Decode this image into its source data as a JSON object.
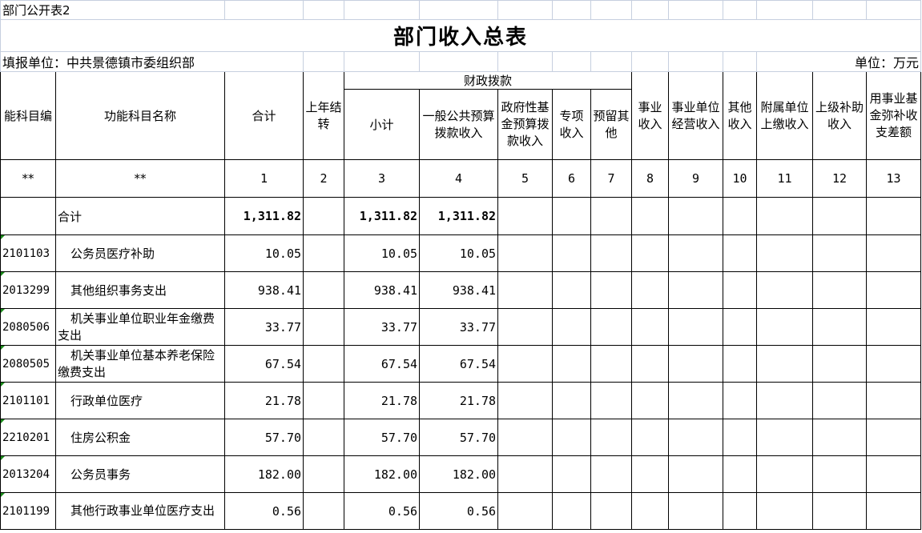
{
  "sheet_label": "部门公开表2",
  "title": "部门收入总表",
  "reporting_unit": "填报单位：中共景德镇市委组织部",
  "unit": "单位：万元",
  "headers": {
    "code": "能科目编",
    "name": "功能科目名称",
    "total": "合计",
    "carryover": "上年结转",
    "fiscal_group": "财政拨款",
    "subtotal": "小计",
    "general_budget": "一般公共预算拨款收入",
    "gov_fund": "政府性基金预算拨款收入",
    "special": "专项收入",
    "reserved_other": "预留其他",
    "business_income": "事业收入",
    "operating_income": "事业单位经营收入",
    "other_income": "其他收入",
    "affiliated": "附属单位上缴收入",
    "superior_subsidy": "上级补助收入",
    "fund_balance": "用事业基金弥补收支差额"
  },
  "index_row": [
    "**",
    "**",
    "1",
    "2",
    "3",
    "4",
    "5",
    "6",
    "7",
    "8",
    "9",
    "10",
    "11",
    "12",
    "13"
  ],
  "total_row": {
    "label": "合计",
    "total": "1,311.82",
    "subtotal": "1,311.82",
    "general_budget": "1,311.82"
  },
  "rows": [
    {
      "code": "2101103",
      "name": "公务员医疗补助",
      "total": "10.05",
      "subtotal": "10.05",
      "general_budget": "10.05"
    },
    {
      "code": "2013299",
      "name": "其他组织事务支出",
      "total": "938.41",
      "subtotal": "938.41",
      "general_budget": "938.41"
    },
    {
      "code": "2080506",
      "name": "机关事业单位职业年金缴费支出",
      "total": "33.77",
      "subtotal": "33.77",
      "general_budget": "33.77"
    },
    {
      "code": "2080505",
      "name": "机关事业单位基本养老保险缴费支出",
      "total": "67.54",
      "subtotal": "67.54",
      "general_budget": "67.54"
    },
    {
      "code": "2101101",
      "name": "行政单位医疗",
      "total": "21.78",
      "subtotal": "21.78",
      "general_budget": "21.78"
    },
    {
      "code": "2210201",
      "name": "住房公积金",
      "total": "57.70",
      "subtotal": "57.70",
      "general_budget": "57.70"
    },
    {
      "code": "2013204",
      "name": "公务员事务",
      "total": "182.00",
      "subtotal": "182.00",
      "general_budget": "182.00"
    },
    {
      "code": "2101199",
      "name": "其他行政事业单位医疗支出",
      "total": "0.56",
      "subtotal": "0.56",
      "general_budget": "0.56"
    }
  ],
  "colors": {
    "grid": "#c6cfdf",
    "border": "#000000",
    "text_marker": "#1a8a1a"
  }
}
